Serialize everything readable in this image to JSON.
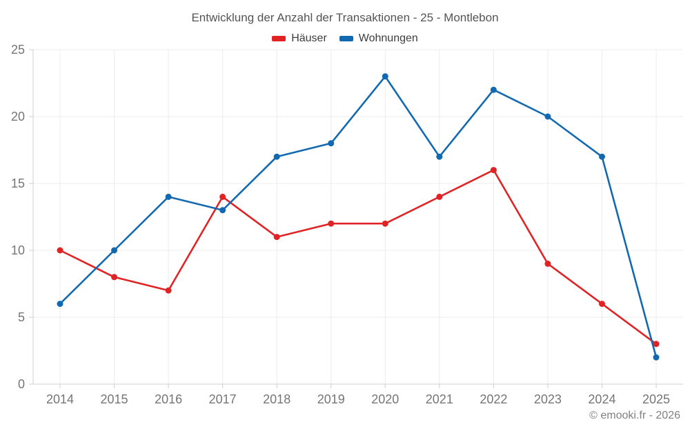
{
  "title": "Entwicklung der Anzahl der Transaktionen - 25 - Montlebon",
  "legend": [
    {
      "label": "Häuser",
      "color": "#e02426"
    },
    {
      "label": "Wohnungen",
      "color": "#1269b0"
    }
  ],
  "attribution": "© emooki.fr - 2026",
  "style": {
    "grid_color": "#ececec",
    "axis_color": "#cfcfcf",
    "tick_color": "#757575"
  },
  "chart_data": {
    "type": "line",
    "title": "Entwicklung der Anzahl der Transaktionen - 25 - Montlebon",
    "x": [
      "2014",
      "2015",
      "2016",
      "2017",
      "2018",
      "2019",
      "2020",
      "2021",
      "2022",
      "2023",
      "2024",
      "2025"
    ],
    "series": [
      {
        "name": "Häuser",
        "color": "#e02426",
        "values": [
          10,
          8,
          7,
          14,
          11,
          12,
          12,
          14,
          16,
          9,
          6,
          3
        ]
      },
      {
        "name": "Wohnungen",
        "color": "#1269b0",
        "values": [
          6,
          10,
          14,
          13,
          17,
          18,
          23,
          17,
          22,
          20,
          17,
          2
        ]
      }
    ],
    "xlabel": "",
    "ylabel": "",
    "ylim": [
      0,
      25
    ],
    "yticks": [
      0,
      5,
      10,
      15,
      20,
      25
    ],
    "grid": true,
    "legend_position": "top"
  }
}
